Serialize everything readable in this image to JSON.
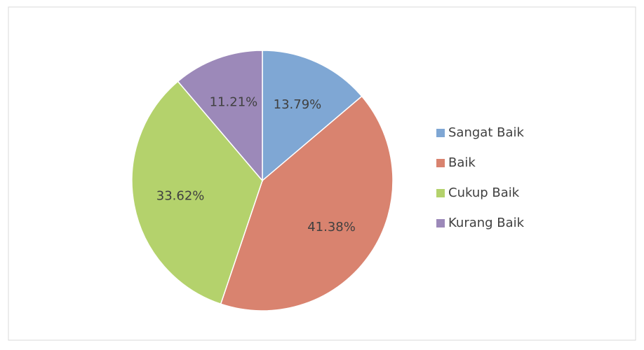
{
  "chart_data": {
    "type": "pie",
    "categories": [
      "Sangat Baik",
      "Baik",
      "Cukup Baik",
      "Kurang Baik"
    ],
    "values": [
      13.79,
      41.38,
      33.62,
      11.21
    ],
    "value_labels": [
      "13.79%",
      "41.38%",
      "33.62%",
      "11.21%"
    ],
    "colors": [
      "#7fa7d4",
      "#d9836f",
      "#b4d26c",
      "#9c89b9"
    ],
    "legend": "right"
  }
}
